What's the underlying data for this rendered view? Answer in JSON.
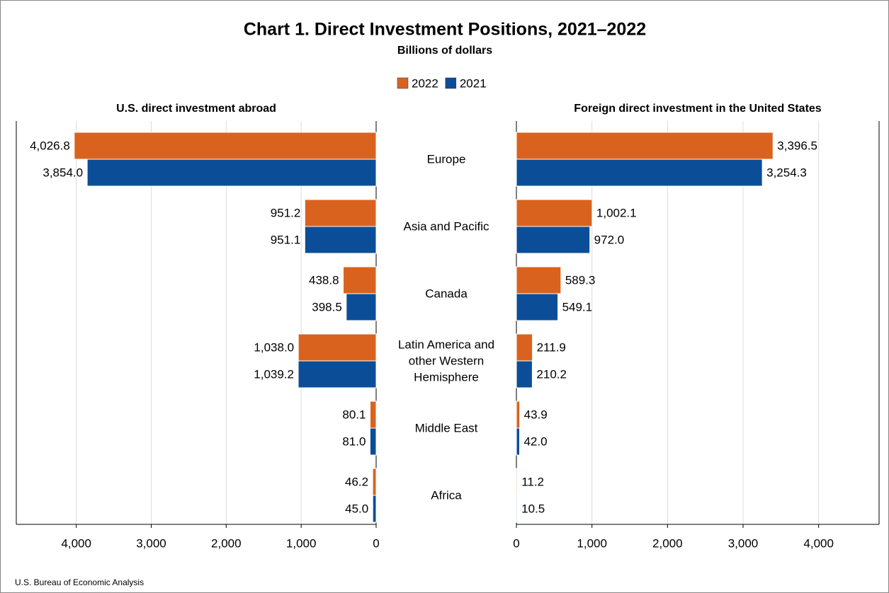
{
  "chart_data": {
    "type": "butterfly",
    "title": "Chart 1. Direct Investment Positions, 2021–2022",
    "subtitle": "Billions of dollars",
    "source": "U.S. Bureau of Economic Analysis",
    "categories": [
      "Europe",
      "Asia and Pacific",
      "Canada",
      "Latin America and other Western Hemisphere",
      "Middle East",
      "Africa"
    ],
    "series": [
      {
        "name": "2022",
        "color": "#d9631e"
      },
      {
        "name": "2021",
        "color": "#0b4e97"
      }
    ],
    "grid": true,
    "panels": [
      {
        "title": "U.S. direct investment abroad",
        "reversed": true,
        "xlim": [
          0,
          4800
        ],
        "xticks": [
          0,
          {
            "value": 1000,
            "label": "1,000"
          },
          {
            "value": 2000,
            "label": "2,000"
          },
          {
            "value": 3000,
            "label": "3,000"
          },
          {
            "value": 4000,
            "label": "4,000"
          }
        ],
        "series": [
          {
            "values": [
              4026.8,
              951.2,
              438.8,
              1038.0,
              80.1,
              46.2
            ],
            "value_labels": [
              "4,026.8",
              "951.2",
              "438.8",
              "1,038.0",
              "80.1",
              "46.2"
            ]
          },
          {
            "values": [
              3854.0,
              951.1,
              398.5,
              1039.2,
              81.0,
              45.0
            ],
            "value_labels": [
              "3,854.0",
              "951.1",
              "398.5",
              "1,039.2",
              "81.0",
              "45.0"
            ]
          }
        ]
      },
      {
        "title": "Foreign direct investment in the United States",
        "reversed": false,
        "xlim": [
          0,
          4800
        ],
        "xticks": [
          0,
          {
            "value": 1000,
            "label": "1,000"
          },
          {
            "value": 2000,
            "label": "2,000"
          },
          {
            "value": 3000,
            "label": "3,000"
          },
          {
            "value": 4000,
            "label": "4,000"
          }
        ],
        "series": [
          {
            "values": [
              3396.5,
              1002.1,
              589.3,
              211.9,
              43.9,
              11.2
            ],
            "value_labels": [
              "3,396.5",
              "1,002.1",
              "589.3",
              "211.9",
              "43.9",
              "11.2"
            ]
          },
          {
            "values": [
              3254.3,
              972.0,
              549.1,
              210.2,
              42.0,
              10.5
            ],
            "value_labels": [
              "3,254.3",
              "972.0",
              "549.1",
              "210.2",
              "42.0",
              "10.5"
            ]
          }
        ]
      }
    ]
  }
}
